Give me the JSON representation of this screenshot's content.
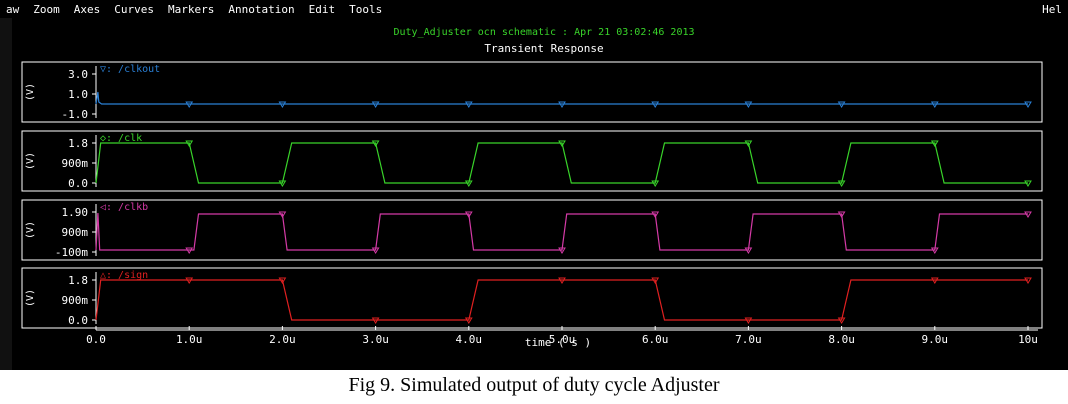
{
  "menu": [
    "aw",
    "Zoom",
    "Axes",
    "Curves",
    "Markers",
    "Annotation",
    "Edit",
    "Tools"
  ],
  "menu_right": "Hel",
  "header": "Duty_Adjuster ocn schematic : Apr 21 03:02:46 2013",
  "caption": "Fig 9. Simulated output of duty cycle Adjuster",
  "colors": {
    "clkout": "#2a7fd4",
    "clk": "#39d42a",
    "clkb": "#d43aa6",
    "sign": "#e02020",
    "header": "#39d42a",
    "axis": "#ffffff"
  },
  "chart_data": {
    "type": "line",
    "title": "Transient Response",
    "xlabel": "time ( s )",
    "xlim": [
      0,
      10
    ],
    "x_unit": "u",
    "x_ticks": [
      "0.0",
      "1.0u",
      "2.0u",
      "3.0u",
      "4.0u",
      "5.0u",
      "6.0u",
      "7.0u",
      "8.0u",
      "9.0u",
      "10u"
    ],
    "panels": [
      {
        "name": "/clkout",
        "marker": "▽",
        "ylabel": "(V)",
        "ylim": [
          -1.0,
          3.0
        ],
        "yticks": [
          "3.0",
          "1.0",
          "-1.0"
        ],
        "ytick_values": [
          3.0,
          1.0,
          -1.0
        ],
        "x": [
          0,
          0.02,
          0.03,
          0.06,
          10
        ],
        "y": [
          0.0,
          1.2,
          0.2,
          0.0,
          0.0
        ]
      },
      {
        "name": "/clk",
        "marker": "◇",
        "ylabel": "(V)",
        "ylim": [
          0,
          1.8
        ],
        "yticks": [
          "1.8",
          "900m",
          "0.0"
        ],
        "ytick_values": [
          1.8,
          0.9,
          0.0
        ],
        "x": [
          0,
          0.05,
          1.0,
          1.1,
          2.0,
          2.1,
          3.0,
          3.1,
          4.0,
          4.1,
          5.0,
          5.1,
          6.0,
          6.1,
          7.0,
          7.1,
          8.0,
          8.1,
          9.0,
          9.1,
          10.0
        ],
        "y": [
          0,
          1.8,
          1.8,
          0,
          0,
          1.8,
          1.8,
          0,
          0,
          1.8,
          1.8,
          0,
          0,
          1.8,
          1.8,
          0,
          0,
          1.8,
          1.8,
          0,
          0
        ]
      },
      {
        "name": "/clkb",
        "marker": "◁",
        "ylabel": "(V)",
        "ylim": [
          -0.1,
          1.9
        ],
        "yticks": [
          "1.90",
          "900m",
          "-100m"
        ],
        "ytick_values": [
          1.9,
          0.9,
          -0.1
        ],
        "x": [
          0,
          0.02,
          0.04,
          1.05,
          1.1,
          2.0,
          2.05,
          3.0,
          3.05,
          4.0,
          4.05,
          5.0,
          5.05,
          6.0,
          6.05,
          7.0,
          7.05,
          8.0,
          8.05,
          9.0,
          9.05,
          10.0
        ],
        "y": [
          0,
          1.85,
          0,
          0,
          1.8,
          1.8,
          0,
          0,
          1.8,
          1.8,
          0,
          0,
          1.8,
          1.8,
          0,
          0,
          1.8,
          1.8,
          0,
          0,
          1.8,
          1.8
        ]
      },
      {
        "name": "/sign",
        "marker": "△",
        "ylabel": "(V)",
        "ylim": [
          0,
          1.8
        ],
        "yticks": [
          "1.8",
          "900m",
          "0.0"
        ],
        "ytick_values": [
          1.8,
          0.9,
          0.0
        ],
        "x": [
          0,
          0.05,
          2.0,
          2.1,
          4.0,
          4.1,
          6.0,
          6.1,
          8.0,
          8.1,
          10.0
        ],
        "y": [
          0,
          1.8,
          1.8,
          0,
          0,
          1.8,
          1.8,
          0,
          0,
          1.8,
          1.8
        ]
      }
    ]
  }
}
